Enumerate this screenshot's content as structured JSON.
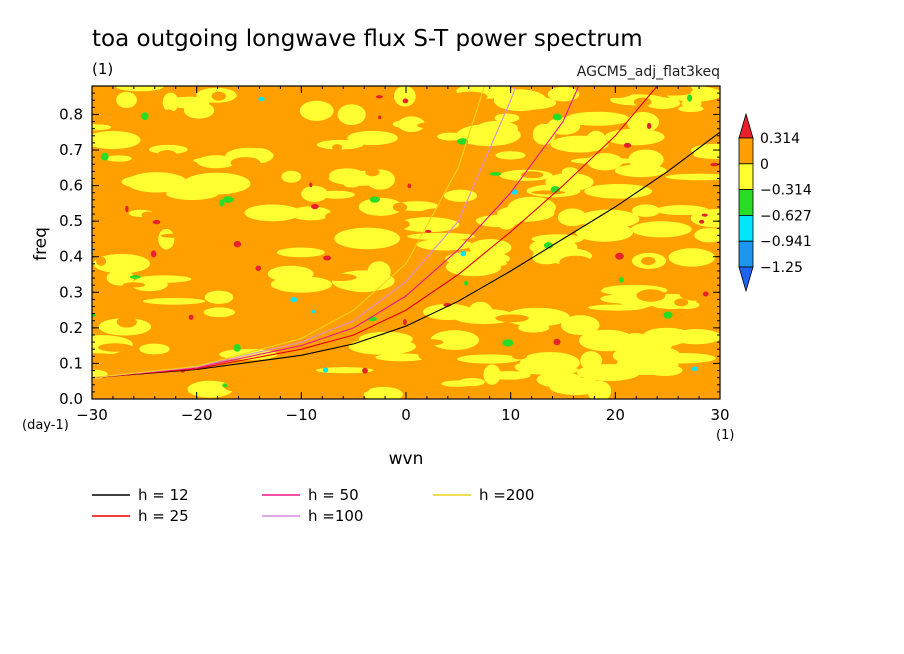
{
  "chart_data": {
    "type": "heatmap",
    "title": "toa outgoing longwave flux S-T power spectrum",
    "subtitle": "(1)",
    "run_label": "AGCM5_adj_flat3keq",
    "xlabel": "wvn",
    "ylabel": "freq",
    "x_unit": "(1)",
    "y_unit": "(day-1)",
    "xlim": [
      -30,
      30
    ],
    "ylim": [
      0,
      0.88
    ],
    "x_ticks": [
      -30,
      -20,
      -10,
      0,
      10,
      20,
      30
    ],
    "x_tick_labels": [
      "−30",
      "−20",
      "−10",
      "0",
      "10",
      "20",
      "30"
    ],
    "y_ticks": [
      0,
      0.1,
      0.2,
      0.3,
      0.4,
      0.5,
      0.6,
      0.7,
      0.8
    ],
    "y_tick_labels": [
      "0.0",
      "0.1",
      "0.2",
      "0.3",
      "0.4",
      "0.5",
      "0.6",
      "0.7",
      "0.8"
    ],
    "colorbar": {
      "levels": [
        0.314,
        0,
        -0.314,
        -0.627,
        -0.941,
        -1.25
      ],
      "labels": [
        "0.314",
        "0",
        "−0.314",
        "−0.627",
        "−0.941",
        "−1.25"
      ],
      "colors": [
        "#e8202a",
        "#ffa000",
        "#ffff32",
        "#28dc28",
        "#00e6ff",
        "#1e96f0",
        "#1e64f0"
      ]
    },
    "field_colors": {
      "high": "#ffa000",
      "mid": "#ffff32",
      "low": "#28dc28",
      "lower": "#00e6ff",
      "peak": "#e8202a"
    },
    "series": [
      {
        "name": "h = 12",
        "color": "#000000",
        "x": [
          -30,
          -20,
          -10,
          -5,
          0,
          5,
          10,
          15,
          20,
          25,
          30
        ],
        "y": [
          0.06,
          0.083,
          0.123,
          0.155,
          0.205,
          0.275,
          0.36,
          0.45,
          0.54,
          0.64,
          0.75
        ]
      },
      {
        "name": "h = 25",
        "color": "#e60000",
        "x": [
          -30,
          -20,
          -10,
          -5,
          0,
          5,
          10,
          15,
          20,
          24
        ],
        "y": [
          0.06,
          0.085,
          0.14,
          0.18,
          0.25,
          0.35,
          0.47,
          0.6,
          0.74,
          0.88
        ]
      },
      {
        "name": "h = 50",
        "color": "#f0148c",
        "x": [
          -30,
          -20,
          -10,
          -5,
          0,
          5,
          10,
          15,
          16.5
        ],
        "y": [
          0.06,
          0.088,
          0.15,
          0.2,
          0.29,
          0.42,
          0.58,
          0.78,
          0.88
        ]
      },
      {
        "name": "h =100",
        "color": "#dc8cdc",
        "x": [
          -30,
          -20,
          -10,
          -5,
          0,
          5,
          10,
          10.5
        ],
        "y": [
          0.06,
          0.09,
          0.16,
          0.22,
          0.33,
          0.5,
          0.84,
          0.88
        ]
      },
      {
        "name": "h =200",
        "color": "#f0d21e",
        "x": [
          -30,
          -20,
          -10,
          -5,
          0,
          5,
          7.5
        ],
        "y": [
          0.06,
          0.092,
          0.17,
          0.25,
          0.38,
          0.65,
          0.88
        ]
      }
    ],
    "legend_position": "bottom"
  }
}
